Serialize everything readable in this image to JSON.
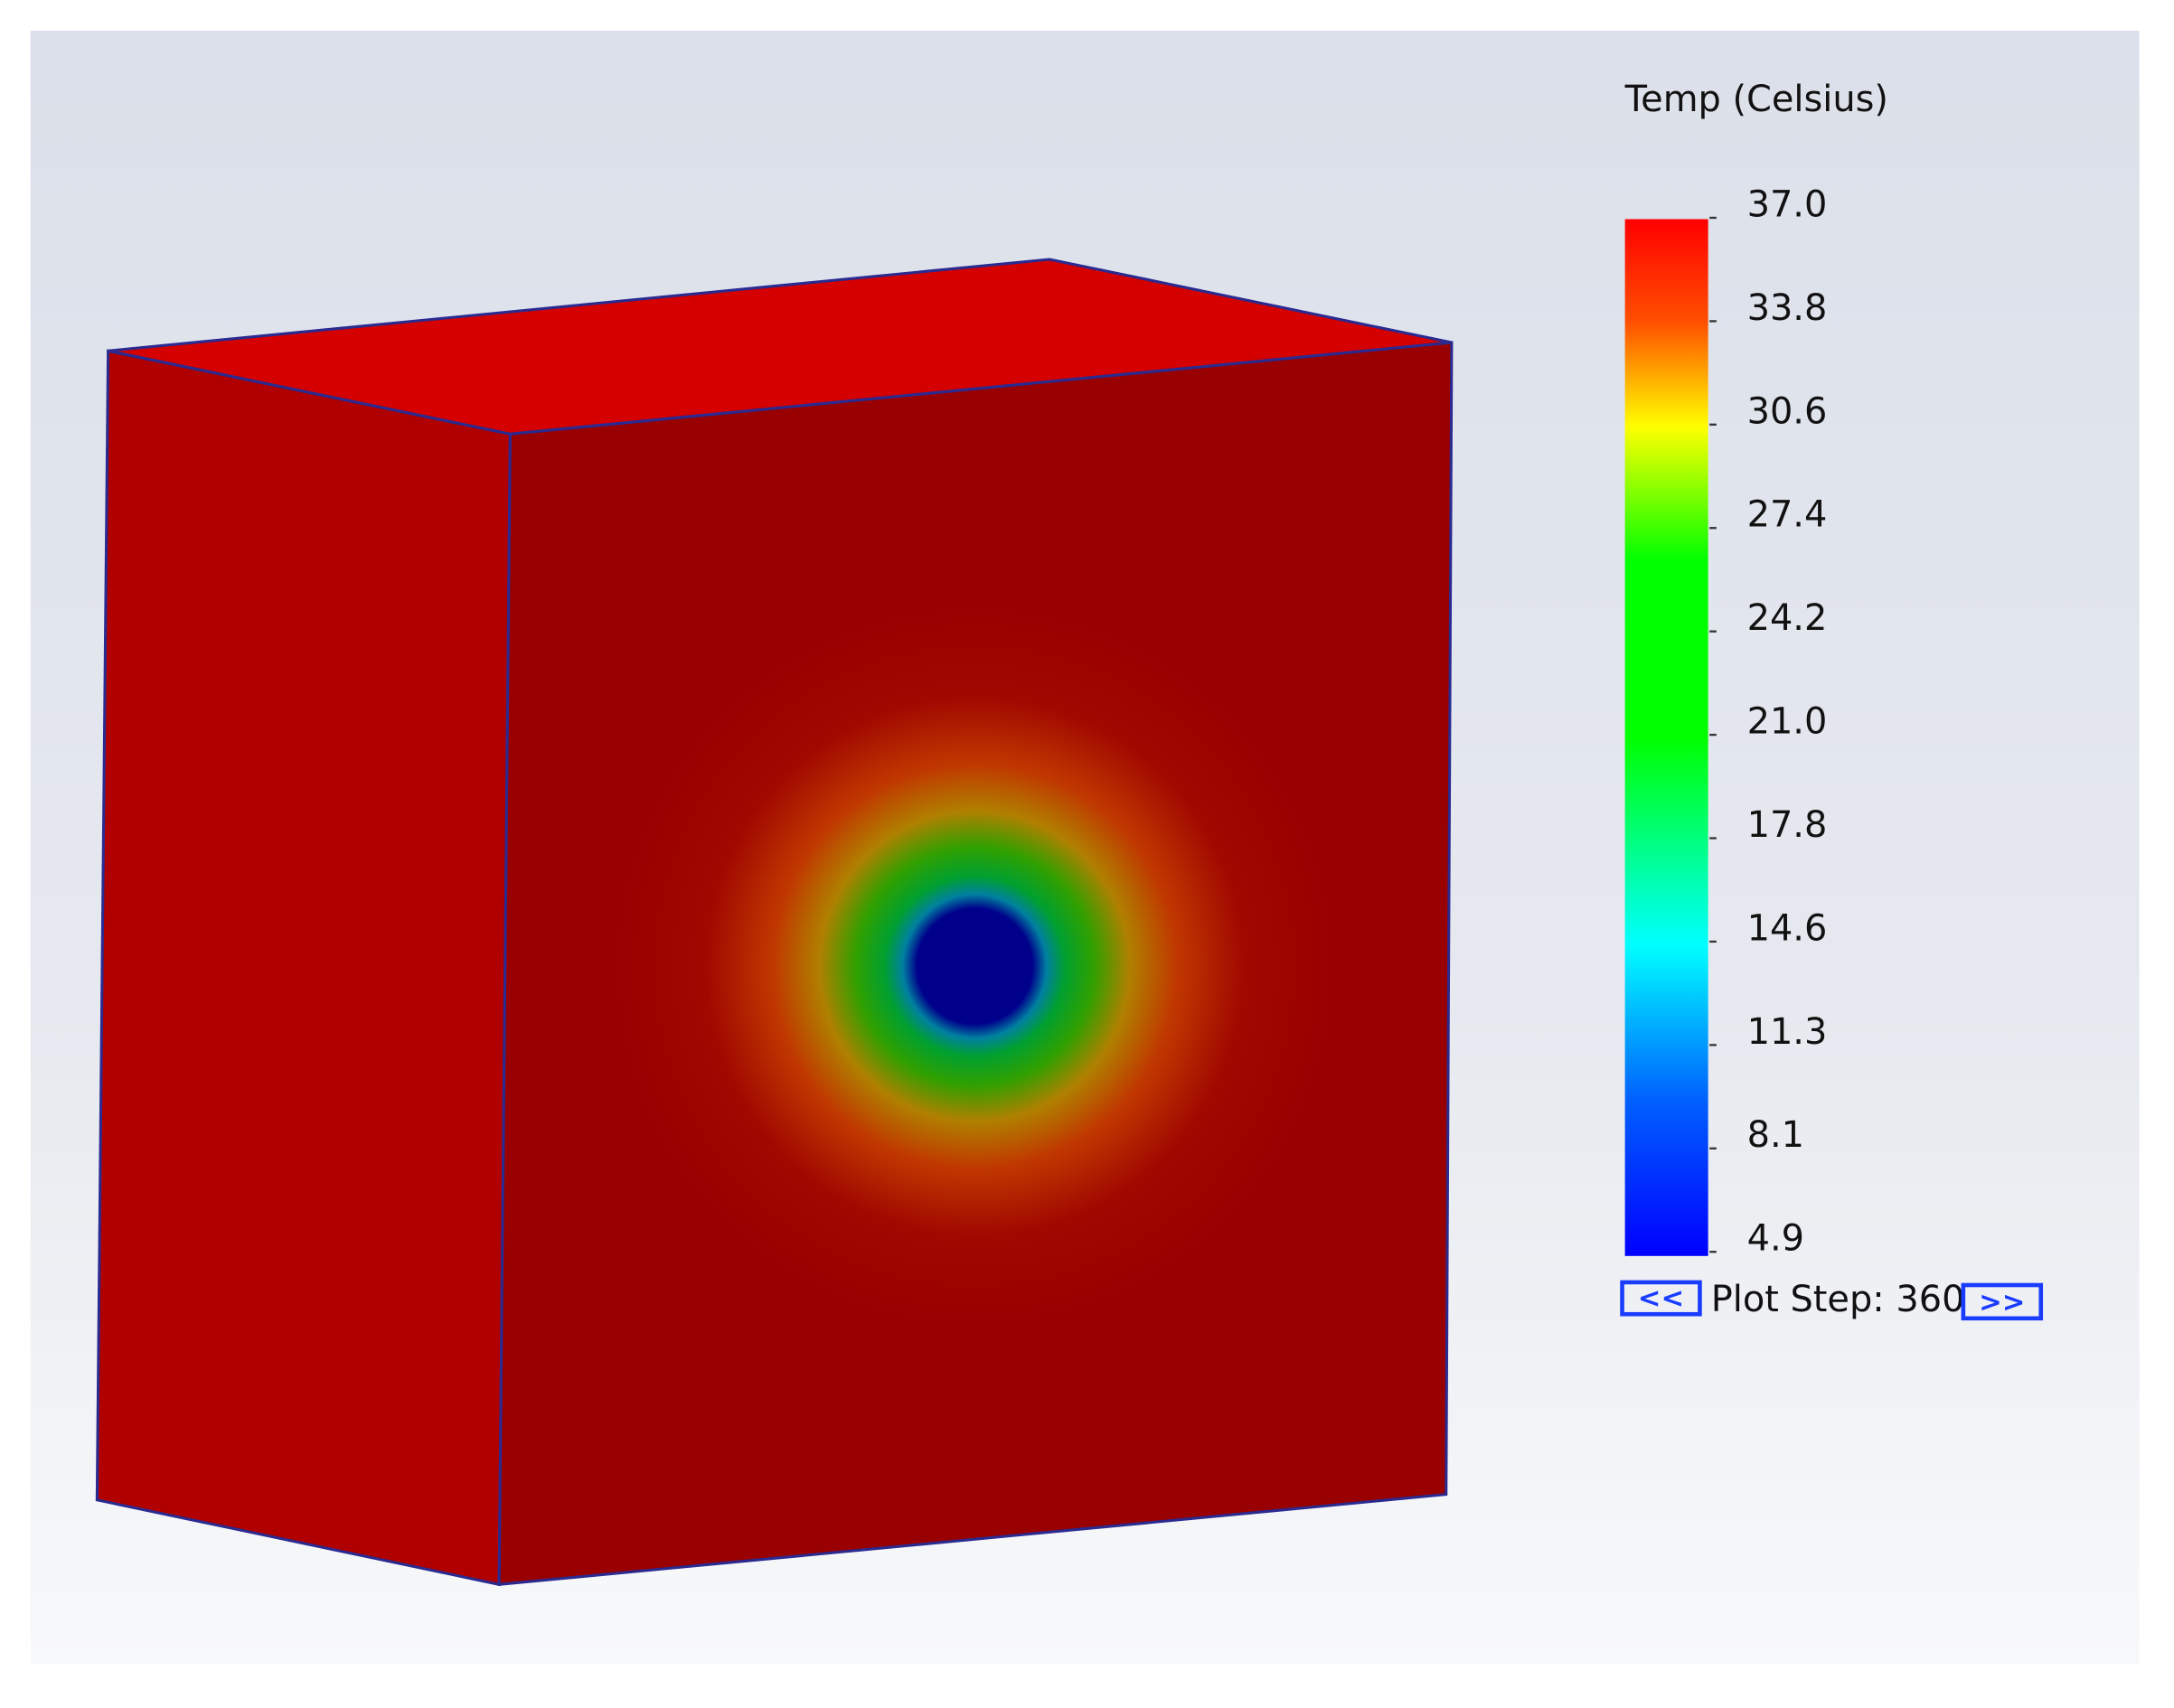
{
  "legend": {
    "title": "Temp (Celsius)",
    "ticks": [
      "37.0",
      "33.8",
      "30.6",
      "27.4",
      "24.2",
      "21.0",
      "17.8",
      "14.6",
      "11.3",
      "8.1",
      "4.9"
    ]
  },
  "plot_step": {
    "prev": "<<",
    "label": "Plot Step: 360",
    "next": ">>"
  }
}
